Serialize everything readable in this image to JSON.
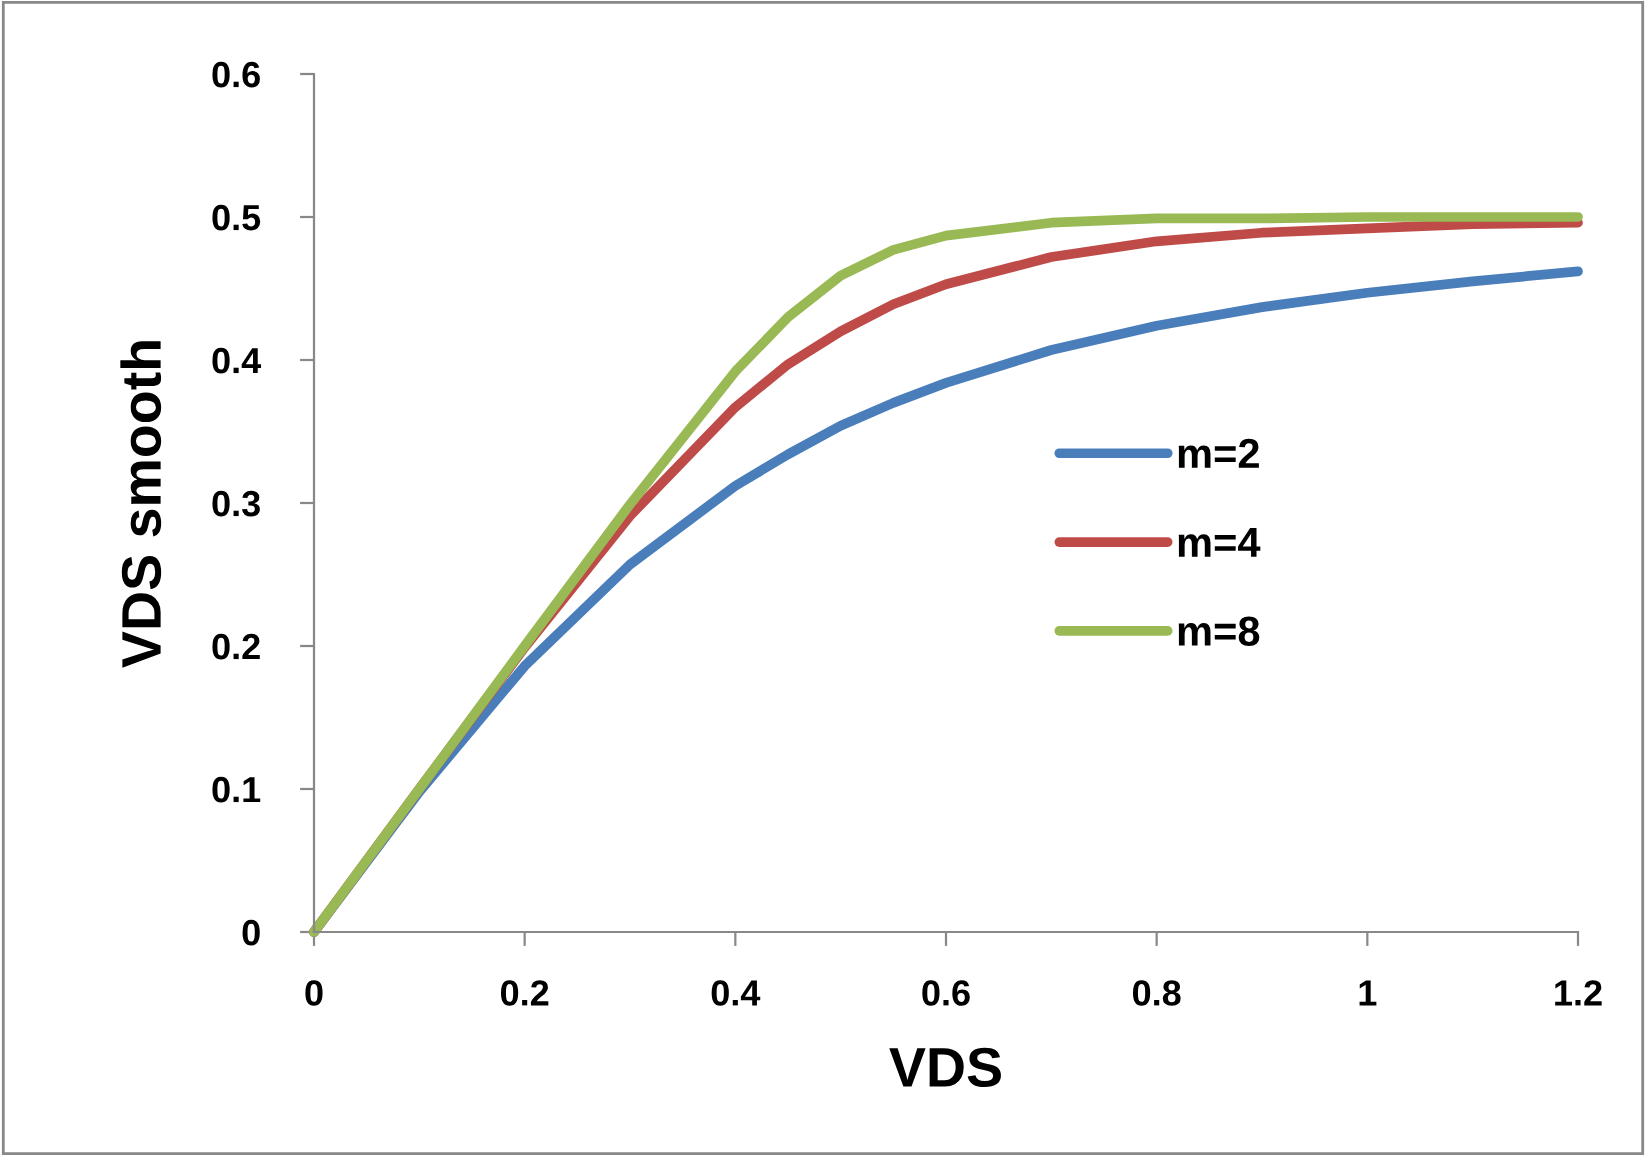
{
  "chart_data": {
    "type": "line",
    "xlabel": "VDS",
    "ylabel": "VDS smooth",
    "x": [
      0,
      0.1,
      0.2,
      0.3,
      0.4,
      0.45,
      0.5,
      0.55,
      0.6,
      0.7,
      0.8,
      0.9,
      1.0,
      1.1,
      1.2
    ],
    "series": [
      {
        "name": "m=2",
        "color": "#4a7ebb",
        "values": [
          0,
          0.098,
          0.186,
          0.257,
          0.312,
          0.334,
          0.354,
          0.37,
          0.384,
          0.407,
          0.424,
          0.437,
          0.447,
          0.455,
          0.462
        ]
      },
      {
        "name": "m=4",
        "color": "#be4b48",
        "values": [
          0,
          0.1,
          0.199,
          0.291,
          0.367,
          0.397,
          0.42,
          0.439,
          0.453,
          0.472,
          0.483,
          0.489,
          0.492,
          0.495,
          0.496
        ]
      },
      {
        "name": "m=8",
        "color": "#98b954",
        "values": [
          0,
          0.1,
          0.2,
          0.299,
          0.392,
          0.43,
          0.459,
          0.477,
          0.487,
          0.496,
          0.499,
          0.499,
          0.5,
          0.5,
          0.5
        ]
      }
    ],
    "xlim": [
      0,
      1.2
    ],
    "ylim": [
      0,
      0.6
    ],
    "xticks": [
      0,
      0.2,
      0.4,
      0.6,
      0.8,
      {
        "value": 1,
        "label": "1"
      },
      1.2
    ],
    "yticks": [
      0,
      0.1,
      0.2,
      0.3,
      0.4,
      0.5,
      0.6
    ],
    "grid": false,
    "legend": "right",
    "marker": "none",
    "line_style": "solid"
  }
}
